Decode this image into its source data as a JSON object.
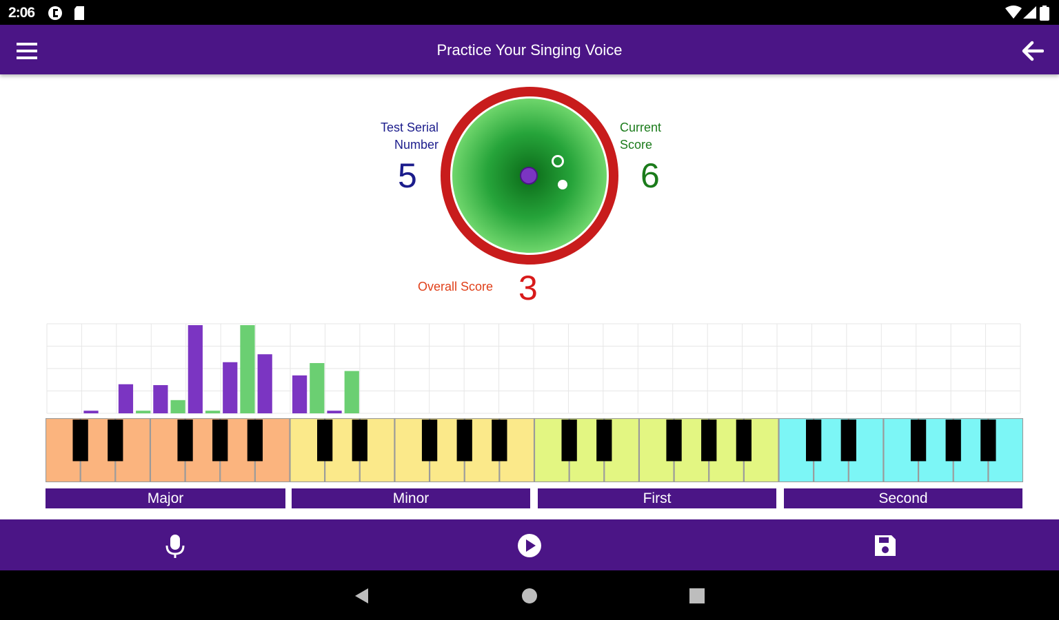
{
  "status_bar": {
    "time": "2:06"
  },
  "app_bar": {
    "title": "Practice Your Singing Voice"
  },
  "scores": {
    "test_serial_label_line1": "Test Serial",
    "test_serial_label_line2": "Number",
    "test_serial_value": "5",
    "current_score_label_line1": "Current",
    "current_score_label_line2": "Score",
    "current_score_value": "6",
    "overall_score_label": "Overall Score",
    "overall_score_value": "3"
  },
  "colors": {
    "purple_bar": "#7b35c2",
    "green_bar": "#6bcf72",
    "app_bar": "#4b1586",
    "target_ring": "#c81c1c",
    "serial_color": "#1b1c8c",
    "current_color": "#1b7b1b",
    "overall_color": "#e0401a"
  },
  "categories": [
    "Major",
    "Minor",
    "First",
    "Second"
  ],
  "chart_data": {
    "type": "bar",
    "note_slots": 28,
    "ylim": [
      0,
      100
    ],
    "grid": true,
    "series": [
      {
        "color": "purple",
        "values": [
          0,
          0,
          3,
          0,
          33,
          0,
          32,
          0,
          100,
          0,
          58,
          0,
          67,
          0,
          43,
          0,
          3,
          0,
          0,
          0,
          0,
          0,
          0,
          0,
          0,
          0,
          0,
          0
        ]
      },
      {
        "color": "green",
        "values": [
          0,
          0,
          0,
          0,
          0,
          3,
          0,
          15,
          0,
          3,
          0,
          100,
          0,
          0,
          0,
          57,
          0,
          48,
          0,
          0,
          0,
          0,
          0,
          0,
          0,
          0,
          0,
          0
        ]
      }
    ]
  }
}
